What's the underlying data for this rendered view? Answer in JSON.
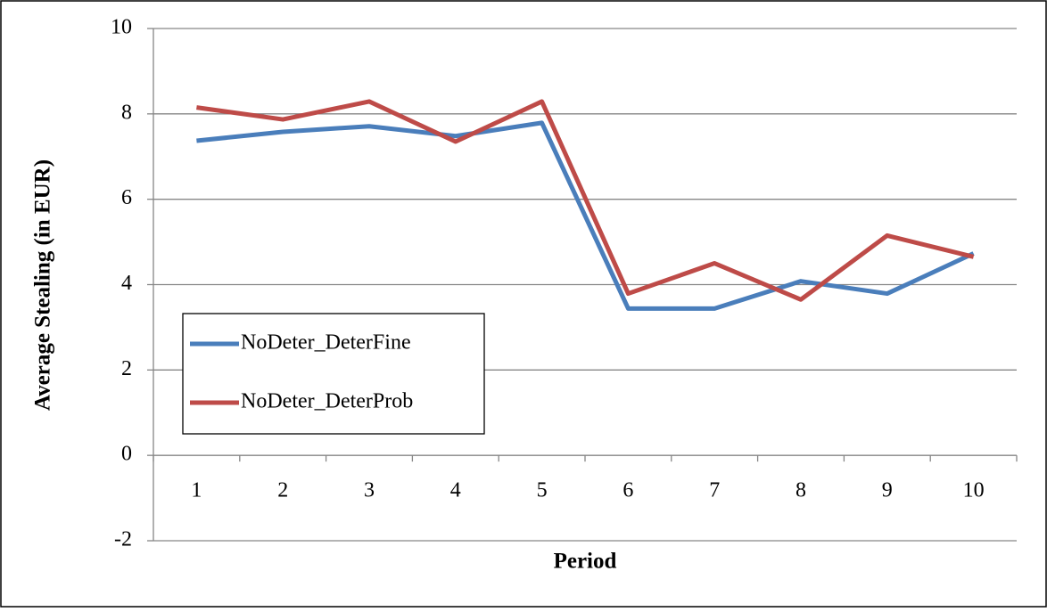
{
  "chart_data": {
    "type": "line",
    "x_label": "Period",
    "y_label": "Average Stealing (in EUR)",
    "categories": [
      "1",
      "2",
      "3",
      "4",
      "5",
      "6",
      "7",
      "8",
      "9",
      "10"
    ],
    "series": [
      {
        "name": "NoDeter_DeterFine",
        "color": "#4a7ebb",
        "values": [
          7.37,
          7.58,
          7.71,
          7.48,
          7.79,
          3.44,
          3.44,
          4.08,
          3.79,
          4.73
        ]
      },
      {
        "name": "NoDeter_DeterProb",
        "color": "#be4b48",
        "values": [
          8.15,
          7.87,
          8.29,
          7.35,
          8.29,
          3.79,
          4.5,
          3.65,
          5.15,
          4.65
        ]
      }
    ],
    "ylim": [
      -2,
      10
    ],
    "yticks": [
      -2,
      0,
      2,
      4,
      6,
      8,
      10
    ],
    "grid": true,
    "legend": "lower left"
  }
}
